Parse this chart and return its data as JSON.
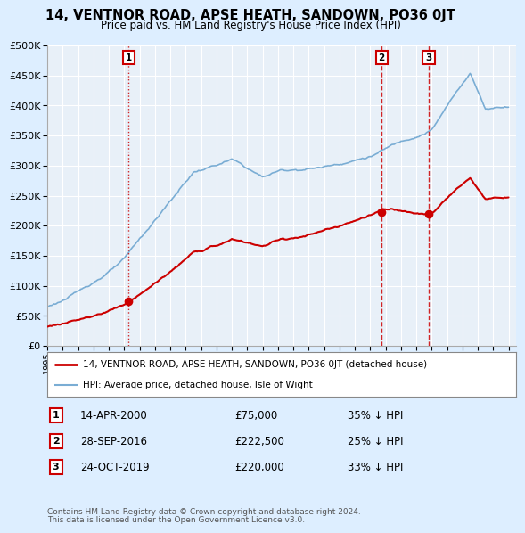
{
  "title": "14, VENTNOR ROAD, APSE HEATH, SANDOWN, PO36 0JT",
  "subtitle": "Price paid vs. HM Land Registry's House Price Index (HPI)",
  "sale_prices": [
    75000,
    222500,
    220000
  ],
  "sale_labels": [
    "1",
    "2",
    "3"
  ],
  "sale_years": [
    2000.29,
    2016.75,
    2019.81
  ],
  "sale_info": [
    {
      "label": "1",
      "date": "14-APR-2000",
      "price": "£75,000",
      "note": "35% ↓ HPI"
    },
    {
      "label": "2",
      "date": "28-SEP-2016",
      "price": "£222,500",
      "note": "25% ↓ HPI"
    },
    {
      "label": "3",
      "date": "24-OCT-2019",
      "price": "£220,000",
      "note": "33% ↓ HPI"
    }
  ],
  "legend_entries": [
    {
      "label": "14, VENTNOR ROAD, APSE HEATH, SANDOWN, PO36 0JT (detached house)",
      "color": "#cc0000",
      "lw": 1.5
    },
    {
      "label": "HPI: Average price, detached house, Isle of Wight",
      "color": "#7aadd4",
      "lw": 1.2
    }
  ],
  "footer": [
    "Contains HM Land Registry data © Crown copyright and database right 2024.",
    "This data is licensed under the Open Government Licence v3.0."
  ],
  "ylim": [
    0,
    500000
  ],
  "yticks": [
    0,
    50000,
    100000,
    150000,
    200000,
    250000,
    300000,
    350000,
    400000,
    450000,
    500000
  ],
  "xlim": [
    1995,
    2025.5
  ],
  "bg_color": "#ddeeff",
  "plot_bg": "#e8f0f8",
  "grid_color": "#ffffff",
  "sale_line_color": "#cc0000",
  "sale_marker_color": "#cc0000",
  "box_color": "#cc0000"
}
